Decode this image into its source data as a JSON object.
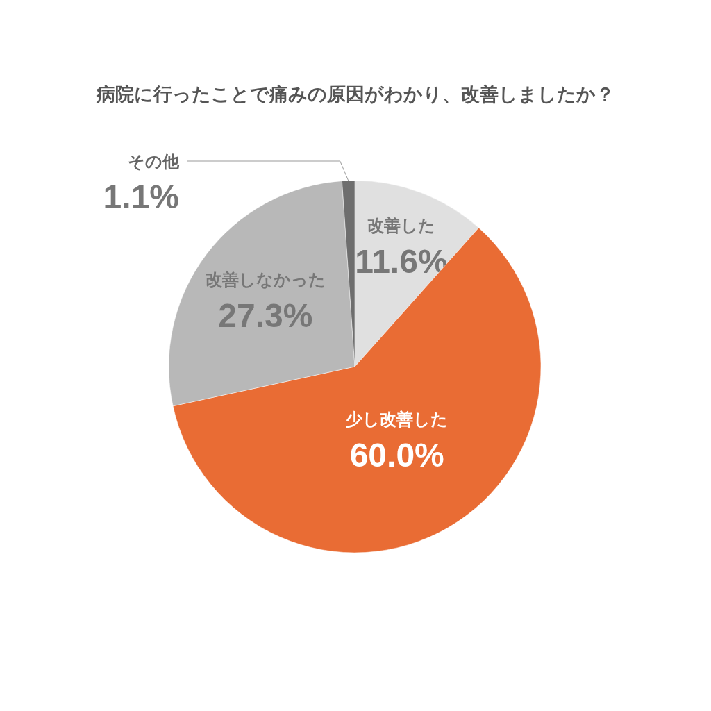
{
  "chart_data": {
    "type": "pie",
    "title": "病院に行ったことで痛みの原因がわかり、改善しましたか？",
    "categories": [
      "改善した",
      "少し改善した",
      "改善しなかった",
      "その他"
    ],
    "values": [
      11.6,
      60.0,
      27.3,
      1.1
    ],
    "colors": [
      "#e0e0e0",
      "#e96c34",
      "#b8b8b8",
      "#6e6e6e"
    ],
    "value_labels": [
      "11.6%",
      "60.0%",
      "27.3%",
      "1.1%"
    ]
  }
}
